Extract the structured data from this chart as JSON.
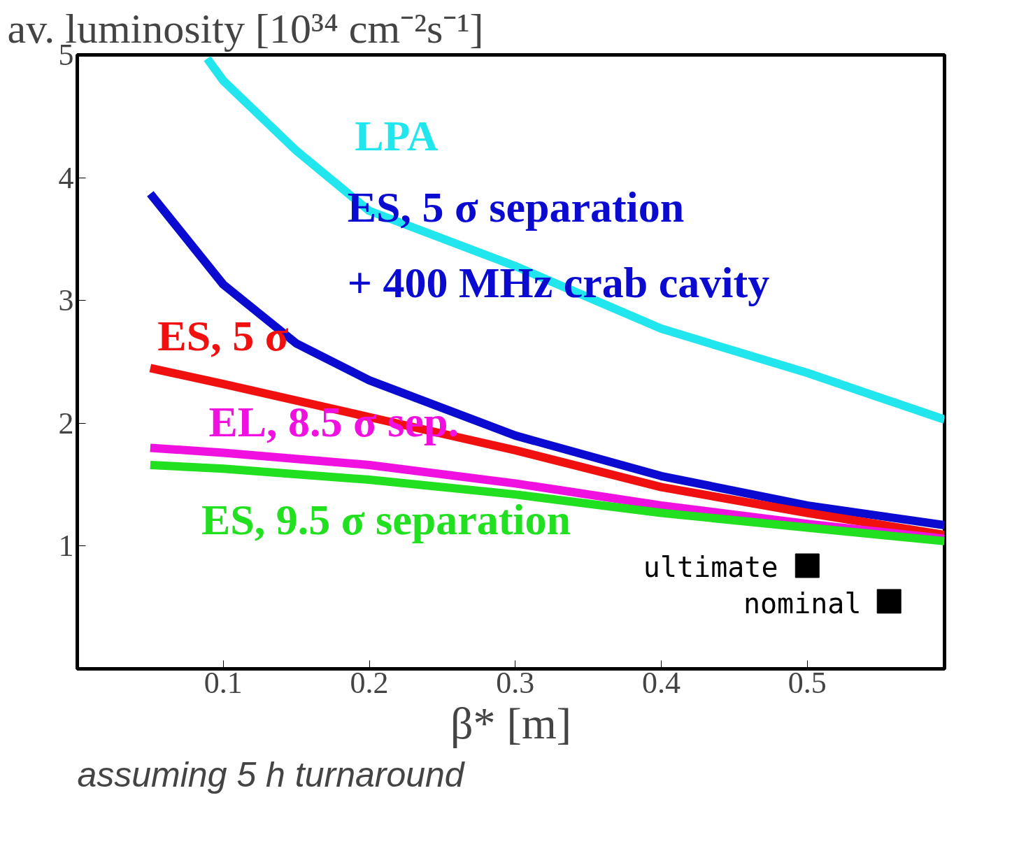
{
  "chart_data": {
    "type": "line",
    "ylabel": "av. luminosity [10³⁴ cm⁻²s⁻¹]",
    "xlabel": "β* [m]",
    "annotations": [
      "assuming 5 h turnaround"
    ],
    "xlim": [
      0,
      0.594
    ],
    "ylim": [
      0,
      5
    ],
    "xticks": [
      0.1,
      0.2,
      0.3,
      0.4,
      0.5
    ],
    "yticks": [
      1,
      2,
      3,
      4,
      5
    ],
    "grid": false,
    "legend": false,
    "line_style": "solid",
    "series": [
      {
        "name": "LPA",
        "color": "#22e6ee",
        "x": [
          0.089,
          0.1,
          0.15,
          0.2,
          0.3,
          0.4,
          0.5,
          0.594
        ],
        "values": [
          4.97,
          4.79,
          4.22,
          3.73,
          3.28,
          2.77,
          2.41,
          2.03
        ]
      },
      {
        "name": "ES, 5 σ separation\n+ 400 MHz crab cavity",
        "color": "#0a0ad0",
        "x": [
          0.05,
          0.1,
          0.15,
          0.2,
          0.3,
          0.4,
          0.5,
          0.594
        ],
        "values": [
          3.87,
          3.13,
          2.65,
          2.35,
          1.9,
          1.57,
          1.33,
          1.17
        ]
      },
      {
        "name": "ES, 5 σ",
        "color": "#f01010",
        "x": [
          0.05,
          0.1,
          0.2,
          0.3,
          0.4,
          0.5,
          0.594
        ],
        "values": [
          2.45,
          2.32,
          2.05,
          1.78,
          1.48,
          1.27,
          1.09
        ]
      },
      {
        "name": "EL, 8.5 σ sep.",
        "color": "#f010e0",
        "x": [
          0.05,
          0.1,
          0.2,
          0.3,
          0.4,
          0.5,
          0.594
        ],
        "values": [
          1.8,
          1.76,
          1.66,
          1.51,
          1.33,
          1.18,
          1.06
        ]
      },
      {
        "name": "ES, 9.5 σ separation",
        "color": "#20e020",
        "x": [
          0.05,
          0.1,
          0.2,
          0.3,
          0.4,
          0.5,
          0.594
        ],
        "values": [
          1.66,
          1.63,
          1.54,
          1.42,
          1.27,
          1.15,
          1.04
        ]
      },
      {
        "name": "ultimate",
        "type": "scatter",
        "marker": "square",
        "color": "#000000",
        "x": [
          0.5
        ],
        "values": [
          0.84
        ]
      },
      {
        "name": "nominal",
        "type": "scatter",
        "marker": "square",
        "color": "#000000",
        "x": [
          0.556
        ],
        "values": [
          0.55
        ]
      }
    ]
  }
}
